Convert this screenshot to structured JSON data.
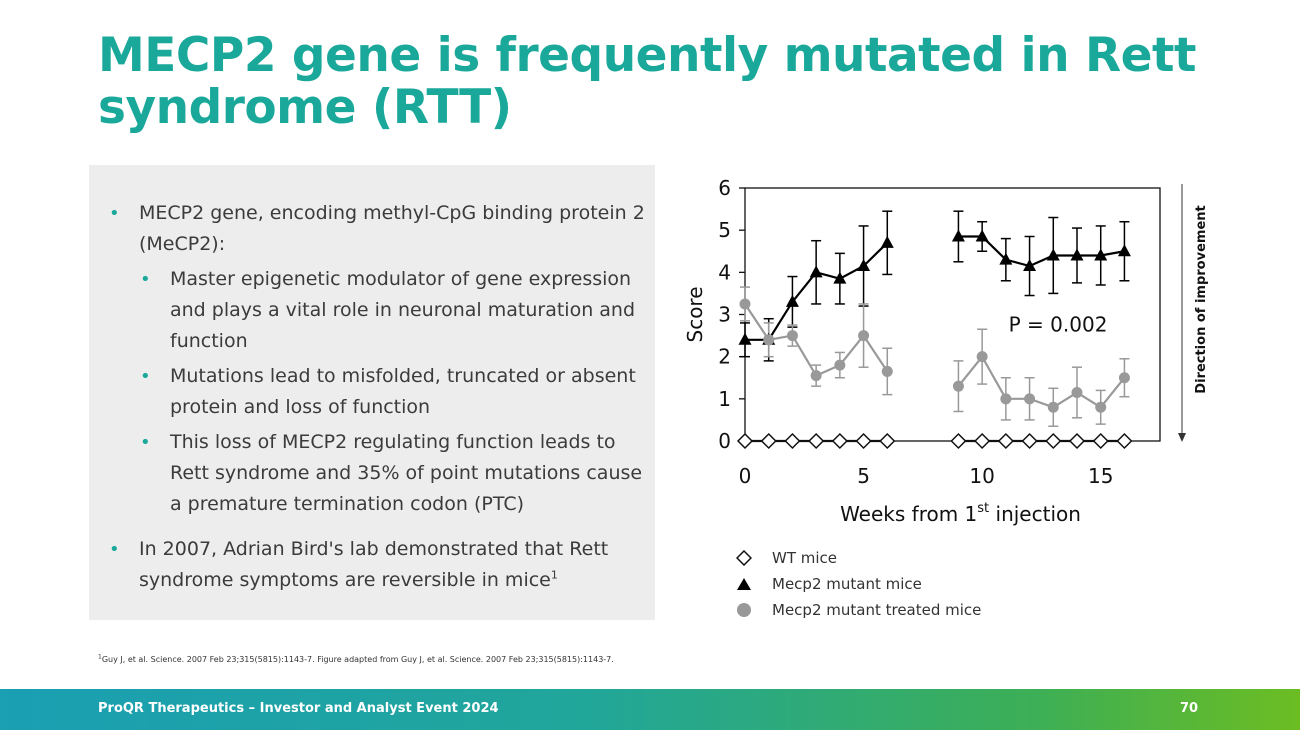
{
  "slide": {
    "title": "MECP2 gene is frequently mutated in Rett syndrome (RTT)",
    "bullets": {
      "b1": "MECP2 gene, encoding methyl-CpG binding protein 2 (MeCP2):",
      "b1a": "Master epigenetic modulator of gene expression and plays a vital role in neuronal maturation and function",
      "b1b": "Mutations lead to misfolded, truncated or absent protein and loss of function",
      "b1c": "This loss of MECP2 regulating function leads to Rett syndrome and 35% of point mutations cause a premature termination codon (PTC)",
      "b2": "In 2007, Adrian Bird's lab demonstrated that Rett syndrome symptoms are reversible in mice",
      "b2_sup": "1"
    },
    "footnote_sup": "1",
    "footnote": "Guy J, et al. Science. 2007 Feb 23;315(5815):1143-7. Figure adapted from Guy J, et al. Science. 2007 Feb 23;315(5815):1143-7.",
    "footer": "ProQR Therapeutics – Investor and Analyst Event 2024",
    "page_number": "70"
  },
  "chart_data": {
    "type": "line",
    "ylabel": "Score",
    "xlabel_pre": "Weeks from 1",
    "xlabel_sup": "st",
    "xlabel_post": " injection",
    "xlim": [
      0,
      17.5
    ],
    "ylim": [
      0,
      6
    ],
    "xticks": [
      0,
      5,
      10,
      15
    ],
    "yticks": [
      0,
      1,
      2,
      3,
      4,
      5,
      6
    ],
    "annotation": "P = 0.002",
    "side_label": "Direction of improvement",
    "series": [
      {
        "name": "WT mice",
        "marker": "diamond-open",
        "color": "#111111",
        "x": [
          0,
          1,
          2,
          3,
          4,
          5,
          6,
          9,
          10,
          11,
          12,
          13,
          14,
          15,
          16
        ],
        "y": [
          0,
          0,
          0,
          0,
          0,
          0,
          0,
          0,
          0,
          0,
          0,
          0,
          0,
          0,
          0
        ],
        "err": [
          0,
          0,
          0,
          0,
          0,
          0,
          0,
          0,
          0,
          0,
          0,
          0,
          0,
          0,
          0
        ]
      },
      {
        "name": "Mecp2 mutant mice",
        "marker": "triangle",
        "color": "#000000",
        "x": [
          0,
          1,
          2,
          3,
          4,
          5,
          6,
          9,
          10,
          11,
          12,
          13,
          14,
          15,
          16
        ],
        "y": [
          2.4,
          2.4,
          3.3,
          4.0,
          3.85,
          4.15,
          4.7,
          4.85,
          4.85,
          4.3,
          4.15,
          4.4,
          4.4,
          4.4,
          4.5
        ],
        "err": [
          0.4,
          0.5,
          0.6,
          0.75,
          0.6,
          0.95,
          0.75,
          0.6,
          0.35,
          0.5,
          0.7,
          0.9,
          0.65,
          0.7,
          0.7
        ]
      },
      {
        "name": "Mecp2 mutant treated mice",
        "marker": "circle",
        "color": "#999999",
        "x": [
          0,
          1,
          2,
          3,
          4,
          5,
          6,
          9,
          10,
          11,
          12,
          13,
          14,
          15,
          16
        ],
        "y": [
          3.25,
          2.4,
          2.5,
          1.55,
          1.8,
          2.5,
          1.65,
          1.3,
          2.0,
          1.0,
          1.0,
          0.8,
          1.15,
          0.8,
          1.5
        ],
        "err": [
          0.4,
          0.4,
          0.25,
          0.25,
          0.3,
          0.75,
          0.55,
          0.6,
          0.65,
          0.5,
          0.5,
          0.45,
          0.6,
          0.4,
          0.45
        ]
      }
    ]
  }
}
